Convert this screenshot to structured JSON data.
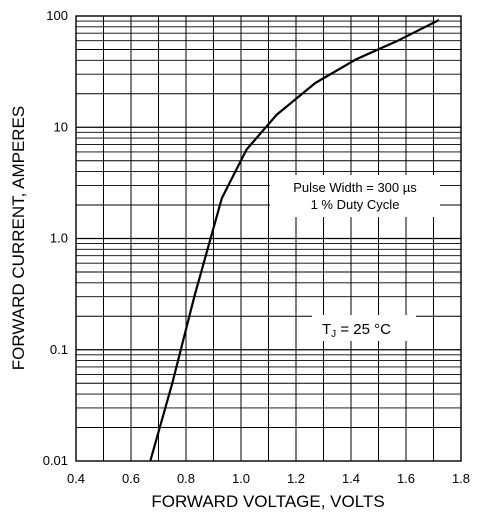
{
  "chart_data": {
    "type": "line",
    "title": "",
    "xlabel": "FORWARD VOLTAGE, VOLTS",
    "ylabel": "FORWARD CURRENT, AMPERES",
    "xlim": [
      0.4,
      1.8
    ],
    "ylim": [
      0.01,
      100
    ],
    "y_scale": "log",
    "grid": true,
    "x_ticks": [
      "0.4",
      "0.6",
      "0.8",
      "1.0",
      "1.2",
      "1.4",
      "1.6",
      "1.8"
    ],
    "y_ticks": [
      "0.01",
      "0.1",
      "1.0",
      "10",
      "100"
    ],
    "series": [
      {
        "x": [
          0.67,
          0.75,
          0.83,
          0.93,
          1.02,
          1.13,
          1.27,
          1.42,
          1.57,
          1.72
        ],
        "y": [
          0.01,
          0.05,
          0.3,
          2.3,
          6.3,
          13,
          25,
          41,
          60,
          92
        ]
      }
    ],
    "annotations": [
      {
        "text": "Pulse Width = 300 µs",
        "line2": "1 % Duty Cycle"
      },
      {
        "text": "T",
        "sub": "J",
        "rest": " = 25 °C"
      }
    ]
  }
}
